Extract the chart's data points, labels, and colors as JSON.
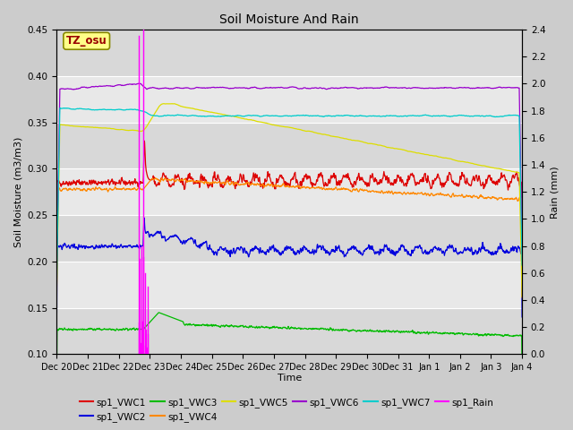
{
  "title": "Soil Moisture And Rain",
  "ylabel_left": "Soil Moisture (m3/m3)",
  "ylabel_right": "Rain (mm)",
  "xlabel": "Time",
  "annotation": "TZ_osu",
  "plot_bg": "#e8e8e8",
  "fig_bg": "#d8d8d8",
  "ylim_left": [
    0.1,
    0.45
  ],
  "ylim_right": [
    0.0,
    2.4
  ],
  "yticks_left": [
    0.1,
    0.15,
    0.2,
    0.25,
    0.3,
    0.35,
    0.4,
    0.45
  ],
  "yticks_right": [
    0.0,
    0.2,
    0.4,
    0.6,
    0.8,
    1.0,
    1.2,
    1.4,
    1.6,
    1.8,
    2.0,
    2.2,
    2.4
  ],
  "colors": {
    "VWC1": "#dd0000",
    "VWC2": "#0000dd",
    "VWC3": "#00bb00",
    "VWC4": "#ff8800",
    "VWC5": "#dddd00",
    "VWC6": "#9900cc",
    "VWC7": "#00cccc",
    "Rain": "#ff00ff"
  },
  "legend_labels": [
    "sp1_VWC1",
    "sp1_VWC2",
    "sp1_VWC3",
    "sp1_VWC4",
    "sp1_VWC5",
    "sp1_VWC6",
    "sp1_VWC7",
    "sp1_Rain"
  ],
  "tick_labels": [
    "Dec 20",
    "Dec 21",
    "Dec 22",
    "Dec 23",
    "Dec 24",
    "Dec 25",
    "Dec 26",
    "Dec 27",
    "Dec 28",
    "Dec 29",
    "Dec 30",
    "Dec 31",
    "Jan 1",
    "Jan 2",
    "Jan 3",
    "Jan 4"
  ]
}
